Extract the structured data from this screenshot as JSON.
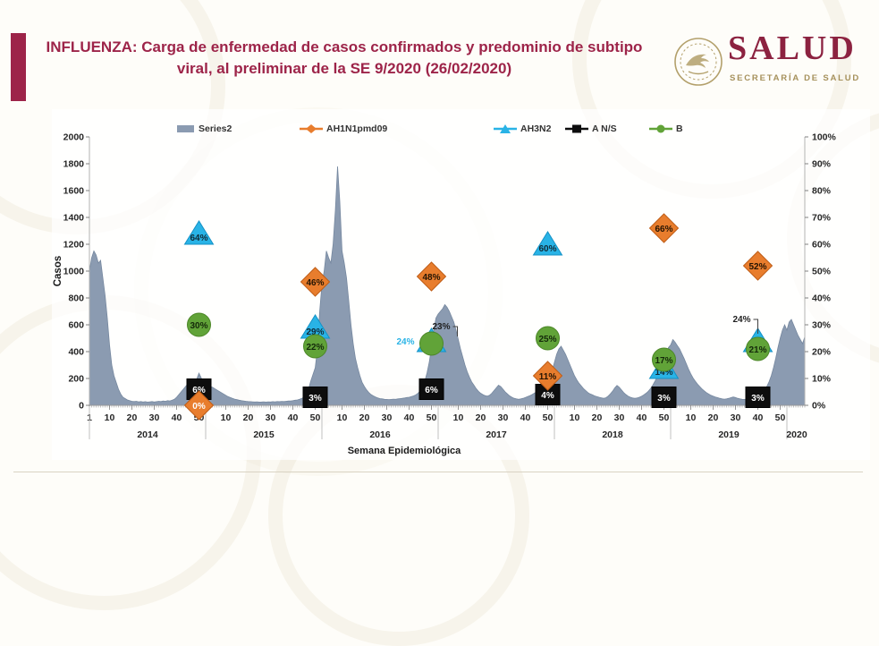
{
  "header": {
    "title": "INFLUENZA: Carga de enfermedad de casos confirmados y predominio de subtipo viral, al preliminar de la SE 9/2020 (26/02/2020)",
    "title_color": "#9d2449",
    "accent_bar_color": "#9d2449",
    "logo": {
      "wordmark": "SALUD",
      "subtitle": "SECRETARÍA DE SALUD",
      "wordmark_color": "#8c2240",
      "seal_color": "#b3a06b"
    }
  },
  "footer_rule_color": "#d9d3c3",
  "chart_data": {
    "type": "area",
    "legend": [
      {
        "label": "Series2",
        "marker": "bar",
        "color": "#8b9bb1"
      },
      {
        "label": "AH1N1pmd09",
        "marker": "diamond",
        "color": "#e87d2d"
      },
      {
        "label": "AH3N2",
        "marker": "triangle",
        "color": "#29b3e6"
      },
      {
        "label": "A N/S",
        "marker": "square",
        "color": "#0d0d0d"
      },
      {
        "label": "B",
        "marker": "circle",
        "color": "#61a338"
      }
    ],
    "x_axis": {
      "title": "Semana Epidemiológica",
      "years": [
        "2014",
        "2015",
        "2016",
        "2017",
        "2018",
        "2019",
        "2020"
      ],
      "week_ticks": [
        1,
        10,
        20,
        30,
        40,
        50
      ],
      "weeks_in_2020": 9
    },
    "y_left": {
      "title": "Casos",
      "min": 0,
      "max": 2000,
      "step": 200
    },
    "y_right": {
      "min": 0,
      "max": 100,
      "step": 10,
      "unit": "%"
    },
    "area_series": {
      "name": "Series2",
      "color": "#8b9bb1",
      "edge_color": "#76889f",
      "values_by_year": {
        "2014": [
          1000,
          1100,
          1150,
          1120,
          1060,
          1080,
          950,
          820,
          650,
          450,
          300,
          220,
          170,
          120,
          85,
          60,
          50,
          40,
          35,
          30,
          28,
          30,
          26,
          28,
          25,
          27,
          24,
          26,
          28,
          25,
          27,
          30,
          28,
          32,
          30,
          35,
          33,
          38,
          45,
          60,
          80,
          100,
          120,
          140,
          160,
          150,
          170,
          185,
          195,
          240,
          205,
          175
        ],
        "2015": [
          160,
          150,
          140,
          135,
          125,
          115,
          105,
          95,
          85,
          75,
          65,
          58,
          52,
          46,
          42,
          38,
          35,
          33,
          30,
          28,
          27,
          26,
          25,
          26,
          24,
          25,
          26,
          24,
          26,
          25,
          27,
          26,
          28,
          27,
          29,
          28,
          30,
          32,
          33,
          35,
          38,
          40,
          45,
          52,
          60,
          80,
          120,
          180,
          230,
          280,
          420,
          700
        ],
        "2016": [
          900,
          1000,
          1150,
          1100,
          1060,
          1200,
          1450,
          1780,
          1520,
          1150,
          1060,
          950,
          780,
          600,
          460,
          350,
          280,
          220,
          170,
          140,
          115,
          95,
          80,
          70,
          62,
          55,
          50,
          48,
          45,
          44,
          42,
          44,
          46,
          45,
          48,
          50,
          52,
          55,
          58,
          60,
          65,
          70,
          78,
          90,
          110,
          140,
          180,
          240,
          320,
          430,
          550,
          650
        ],
        "2017": [
          680,
          700,
          720,
          750,
          730,
          700,
          660,
          620,
          560,
          490,
          420,
          360,
          300,
          250,
          210,
          175,
          150,
          125,
          105,
          90,
          80,
          72,
          68,
          75,
          90,
          110,
          130,
          150,
          140,
          120,
          100,
          85,
          70,
          60,
          52,
          48,
          45,
          48,
          52,
          58,
          65,
          72,
          80,
          90,
          100,
          110,
          120,
          130,
          140,
          155,
          200,
          260
        ],
        "2018": [
          320,
          380,
          420,
          440,
          410,
          380,
          340,
          300,
          260,
          220,
          190,
          165,
          145,
          125,
          110,
          95,
          85,
          78,
          70,
          65,
          60,
          56,
          52,
          56,
          68,
          85,
          105,
          130,
          148,
          135,
          115,
          95,
          80,
          68,
          60,
          55,
          52,
          55,
          60,
          68,
          78,
          90,
          105,
          125,
          150,
          180,
          215,
          255,
          295,
          330,
          380,
          430
        ],
        "2019": [
          450,
          490,
          470,
          445,
          420,
          385,
          350,
          310,
          270,
          235,
          205,
          180,
          158,
          140,
          122,
          108,
          95,
          85,
          75,
          68,
          62,
          57,
          52,
          48,
          46,
          48,
          52,
          57,
          62,
          58,
          52,
          48,
          45,
          44,
          46,
          50,
          55,
          60,
          68,
          78,
          88,
          100,
          115,
          140,
          175,
          220,
          280,
          350,
          430,
          500,
          560,
          600
        ],
        "2020": [
          560,
          620,
          640,
          600,
          560,
          520,
          490,
          460,
          510
        ]
      }
    },
    "marker_series": [
      {
        "name": "AH1N1pmd09",
        "shape": "diamond",
        "color": "#e87d2d",
        "edge_color": "#bf5d16",
        "label_color": "#241403",
        "points": [
          {
            "year": 2014,
            "week": 50,
            "pct": 0,
            "label_color": "#ffffff"
          },
          {
            "year": 2015,
            "week": 50,
            "pct": 46
          },
          {
            "year": 2016,
            "week": 50,
            "pct": 48
          },
          {
            "year": 2017,
            "week": 50,
            "pct": 11
          },
          {
            "year": 2018,
            "week": 50,
            "pct": 66
          },
          {
            "year": 2019,
            "week": 40,
            "pct": 52
          }
        ]
      },
      {
        "name": "AH3N2",
        "shape": "triangle",
        "color": "#29b3e6",
        "edge_color": "#1492c6",
        "label_color": "#0f2a36",
        "points": [
          {
            "year": 2014,
            "week": 50,
            "pct": 64
          },
          {
            "year": 2015,
            "week": 50,
            "pct": 29
          },
          {
            "year": 2016,
            "week": 50,
            "pct": 24,
            "label_style": "left-outside"
          },
          {
            "year": 2017,
            "week": 50,
            "pct": 60
          },
          {
            "year": 2018,
            "week": 50,
            "pct": 14
          },
          {
            "year": 2019,
            "week": 40,
            "pct": 24,
            "label_style": "callout-above",
            "label_offset": [
              -18,
              -24
            ]
          }
        ]
      },
      {
        "name": "A N/S",
        "shape": "square",
        "color": "#0d0d0d",
        "edge_color": "#000000",
        "label_color": "#ffffff",
        "points": [
          {
            "year": 2014,
            "week": 50,
            "pct": 6
          },
          {
            "year": 2015,
            "week": 50,
            "pct": 3
          },
          {
            "year": 2016,
            "week": 50,
            "pct": 6
          },
          {
            "year": 2017,
            "week": 50,
            "pct": 4
          },
          {
            "year": 2018,
            "week": 50,
            "pct": 3
          },
          {
            "year": 2019,
            "week": 40,
            "pct": 3
          }
        ]
      },
      {
        "name": "B",
        "shape": "circle",
        "color": "#61a338",
        "edge_color": "#4c8728",
        "label_color": "#14290a",
        "points": [
          {
            "year": 2014,
            "week": 50,
            "pct": 30
          },
          {
            "year": 2015,
            "week": 50,
            "pct": 22
          },
          {
            "year": 2016,
            "week": 50,
            "pct": 23,
            "label_style": "callout-above",
            "label_offset": [
              11,
              -19
            ]
          },
          {
            "year": 2017,
            "week": 50,
            "pct": 25
          },
          {
            "year": 2018,
            "week": 50,
            "pct": 17
          },
          {
            "year": 2019,
            "week": 40,
            "pct": 21
          }
        ]
      }
    ]
  }
}
